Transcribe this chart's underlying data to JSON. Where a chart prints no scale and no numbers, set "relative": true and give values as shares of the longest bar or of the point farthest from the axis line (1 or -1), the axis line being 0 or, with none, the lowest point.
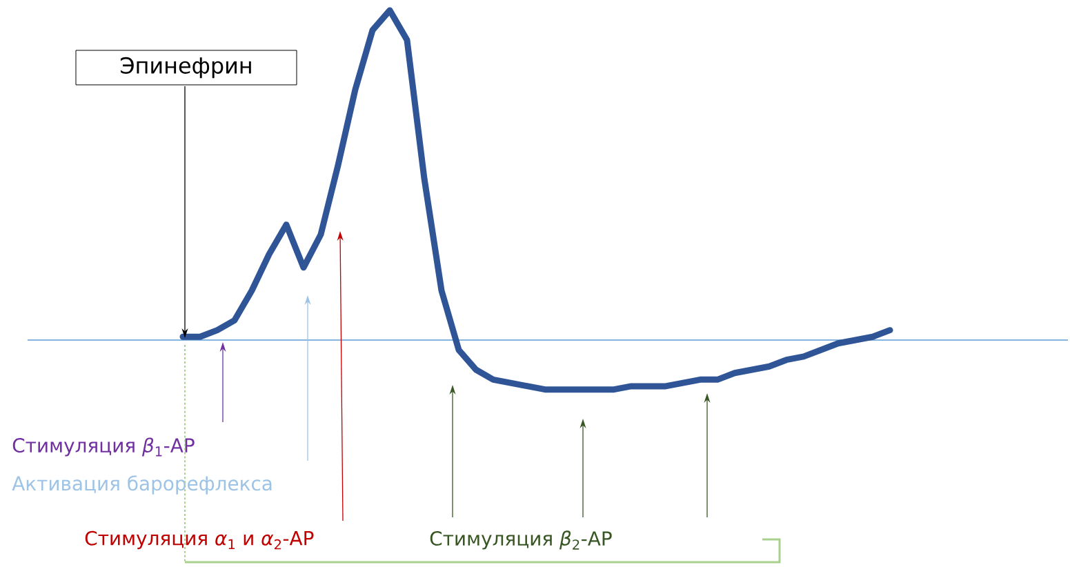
{
  "chart_data": {
    "type": "line",
    "relative": true,
    "categories": [
      null,
      null,
      null,
      null,
      null,
      null,
      null,
      null,
      null,
      null,
      null,
      null,
      null,
      null,
      null,
      null,
      null,
      null,
      null,
      null,
      null,
      null,
      null,
      null,
      null,
      null,
      null,
      null,
      null,
      null,
      null,
      null,
      null,
      null,
      null,
      null,
      null,
      null,
      null,
      null,
      null,
      null,
      null,
      null,
      null,
      null,
      null,
      null,
      null,
      null,
      null,
      null,
      null,
      null,
      null,
      null,
      null,
      null,
      null,
      null,
      null
    ],
    "series": [
      {
        "color": "#2f5597",
        "values": [
          null,
          null,
          null,
          null,
          null,
          null,
          null,
          null,
          null,
          0.01,
          0.01,
          0.03,
          0.06,
          0.15,
          0.26,
          0.35,
          0.22,
          0.32,
          0.53,
          0.76,
          0.94,
          1.0,
          0.91,
          0.49,
          0.15,
          -0.03,
          -0.09,
          -0.12,
          -0.13,
          -0.14,
          -0.15,
          -0.15,
          -0.15,
          -0.15,
          -0.15,
          -0.14,
          -0.14,
          -0.14,
          -0.13,
          -0.12,
          -0.12,
          -0.1,
          -0.09,
          -0.08,
          -0.06,
          -0.05,
          -0.03,
          -0.01,
          0,
          0.01,
          0.03,
          null,
          null,
          null,
          null,
          null,
          null,
          null,
          null,
          null,
          null
        ]
      }
    ],
    "ref_lines": [
      {
        "axis": "y",
        "value": 0,
        "color": "#5b9bd5"
      }
    ],
    "annotations": [
      "Эпинефрин",
      "Стимуляция *β*$_{1}$-АР",
      "Активация барорефлекса",
      "Стимуляция *α*$_{1}$ и *α*$_{2}$-АР",
      "Стимуляция *β*$_{2}$-АР"
    ]
  }
}
